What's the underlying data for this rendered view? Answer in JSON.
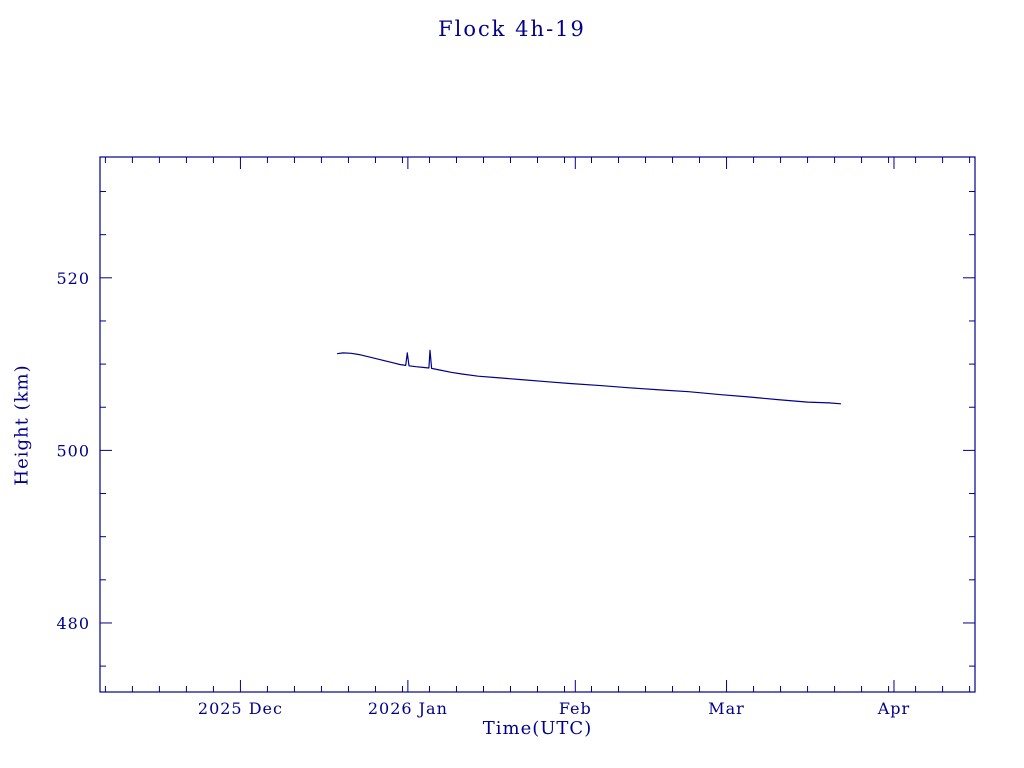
{
  "title": "Flock 4h-19",
  "colors": {
    "ink": "#00008b",
    "background": "#ffffff"
  },
  "chart_data": {
    "type": "line",
    "title": "Flock 4h-19",
    "xlabel": "Time(UTC)",
    "ylabel": "Height (km)",
    "grid": false,
    "legend": "none",
    "x_axis": {
      "unit": "days since 2025-12-01",
      "range_days": [
        -26,
        136
      ],
      "month_ticks": [
        {
          "label": "2025 Dec",
          "day": 0
        },
        {
          "label": "2026 Jan",
          "day": 31
        },
        {
          "label": "Feb",
          "day": 62
        },
        {
          "label": "Mar",
          "day": 90
        },
        {
          "label": "Apr",
          "day": 121
        }
      ],
      "minor_tick_days": 5
    },
    "y_axis": {
      "range": [
        472,
        534
      ],
      "major_ticks": [
        480,
        500,
        520
      ],
      "minor_tick_step": 5
    },
    "series": [
      {
        "name": "height_km",
        "x_days": [
          17.9,
          19,
          20.5,
          22,
          24,
          26,
          28,
          29.5,
          30.6,
          30.9,
          31.2,
          32.5,
          34,
          34.9,
          35.1,
          35.4,
          37,
          39,
          41,
          44,
          48,
          52,
          57,
          61,
          67,
          72,
          78,
          83,
          89,
          94,
          100,
          105,
          109,
          111.2
        ],
        "y_km": [
          511.2,
          511.3,
          511.25,
          511.1,
          510.8,
          510.5,
          510.2,
          509.95,
          509.85,
          511.3,
          509.8,
          509.7,
          509.6,
          509.55,
          511.6,
          509.5,
          509.3,
          509.05,
          508.85,
          508.6,
          508.4,
          508.2,
          507.95,
          507.75,
          507.5,
          507.25,
          507.0,
          506.8,
          506.45,
          506.2,
          505.85,
          505.6,
          505.5,
          505.4
        ]
      }
    ]
  }
}
